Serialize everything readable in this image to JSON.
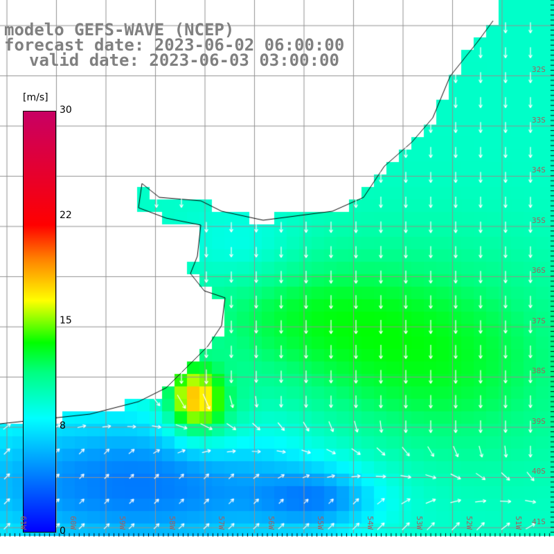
{
  "title": {
    "model": "modelo GEFS-WAVE (NCEP)",
    "forecast": "forecast date: 2023-06-02 06:00:00",
    "valid": "valid date: 2023-06-03 03:00:00"
  },
  "colorbar": {
    "unit": "[m/s]",
    "ticks": [
      "30",
      "22",
      "15",
      "8",
      "0"
    ],
    "range": [
      0,
      30
    ],
    "colors": [
      "#0000ff",
      "#00ffff",
      "#00ff00",
      "#ffff00",
      "#ff0000",
      "#c80064"
    ]
  },
  "latitudes": [
    "32S",
    "33S",
    "34S",
    "35S",
    "36S",
    "37S",
    "38S",
    "39S",
    "40S",
    "41S"
  ],
  "longitudes": [
    "61W",
    "60W",
    "59W",
    "58W",
    "57W",
    "56W",
    "55W",
    "54W",
    "53W",
    "52W",
    "51W"
  ],
  "colors": {
    "land": "#ffffff",
    "coast": "#000000",
    "grid": "#909090",
    "arrow": "#ffffff"
  }
}
